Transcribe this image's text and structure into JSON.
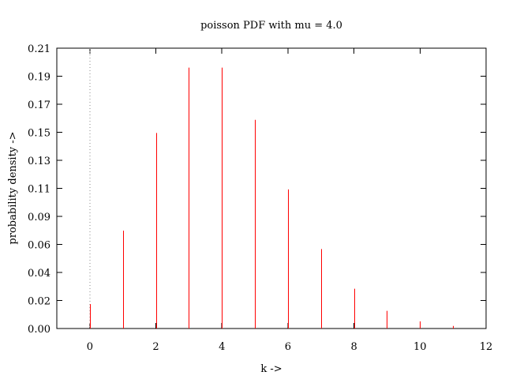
{
  "chart_data": {
    "type": "bar",
    "title": "poisson PDF with mu = 4.0",
    "xlabel": "k ->",
    "ylabel": "probability density ->",
    "xlim": [
      -1,
      12
    ],
    "ylim": [
      0,
      0.21
    ],
    "x_ticks": [
      "0",
      "2",
      "4",
      "6",
      "8",
      "10",
      "12"
    ],
    "y_ticks": [
      "0.00",
      "0.02",
      "0.04",
      "0.06",
      "0.09",
      "0.11",
      "0.13",
      "0.15",
      "0.17",
      "0.19",
      "0.21"
    ],
    "x": [
      0,
      1,
      2,
      3,
      4,
      5,
      6,
      7,
      8,
      9,
      10,
      11
    ],
    "values": [
      0.0183,
      0.0733,
      0.1465,
      0.1954,
      0.1954,
      0.1563,
      0.1042,
      0.0595,
      0.0298,
      0.0132,
      0.0053,
      0.0019
    ],
    "bar_color": "#ff0000",
    "zero_line": "dotted",
    "grid": false
  }
}
